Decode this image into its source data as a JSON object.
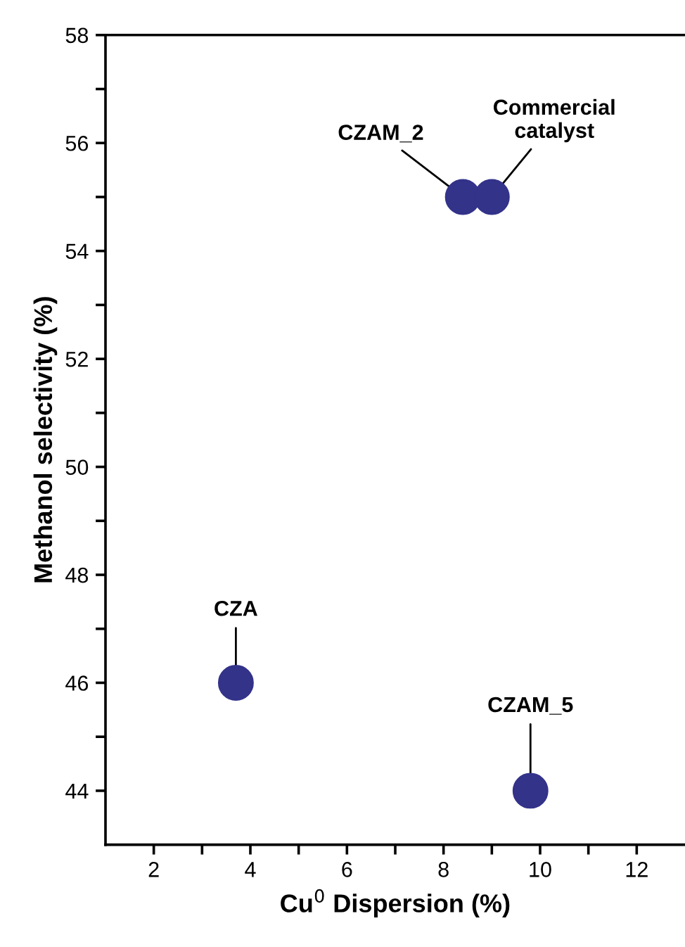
{
  "chart_data": {
    "type": "scatter",
    "xlabel": "Cu$^{0}$ Dispersion (%)",
    "ylabel": "Methanol selectivity (%)",
    "x": [
      3.7,
      8.4,
      9.0,
      9.8
    ],
    "series": [
      {
        "color": "#33338a",
        "values": [
          46,
          55,
          55,
          44
        ]
      }
    ],
    "marker": "circle",
    "xlim": [
      1,
      13
    ],
    "ylim": [
      43,
      58
    ],
    "xticks": [
      2,
      {
        "value": 3,
        "label": null
      },
      4,
      {
        "value": 5,
        "label": null
      },
      6,
      {
        "value": 7,
        "label": null
      },
      8,
      {
        "value": 9,
        "label": null
      },
      10,
      {
        "value": 11,
        "label": null
      },
      12
    ],
    "yticks": [
      44,
      {
        "value": 45,
        "label": null
      },
      46,
      {
        "value": 47,
        "label": null
      },
      48,
      {
        "value": 49,
        "label": null
      },
      50,
      {
        "value": 51,
        "label": null
      },
      52,
      {
        "value": 53,
        "label": null
      },
      54,
      {
        "value": 55,
        "label": null
      },
      56,
      {
        "value": 57,
        "label": null
      },
      58
    ],
    "annotations": [
      {
        "text": "CZA",
        "x": 3.7,
        "y": 46
      },
      {
        "text": "CZAM_2",
        "x": 8.4,
        "y": 55
      },
      {
        "text": "Commercial\ncatalyst",
        "x": 9.0,
        "y": 55
      },
      {
        "text": "CZAM_5",
        "x": 9.8,
        "y": 44
      }
    ],
    "grid": false,
    "legend": false
  }
}
